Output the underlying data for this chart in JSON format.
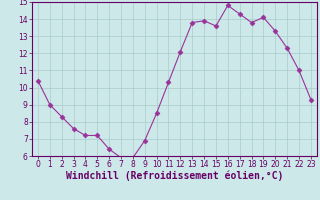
{
  "x": [
    0,
    1,
    2,
    3,
    4,
    5,
    6,
    7,
    8,
    9,
    10,
    11,
    12,
    13,
    14,
    15,
    16,
    17,
    18,
    19,
    20,
    21,
    22,
    23
  ],
  "y": [
    10.4,
    9.0,
    8.3,
    7.6,
    7.2,
    7.2,
    6.4,
    5.9,
    5.9,
    6.9,
    8.5,
    10.3,
    12.1,
    13.8,
    13.9,
    13.6,
    14.8,
    14.3,
    13.8,
    14.1,
    13.3,
    12.3,
    11.0,
    9.3
  ],
  "line_color": "#993399",
  "marker": "D",
  "marker_size": 2.5,
  "bg_color": "#cce8e8",
  "grid_color": "#aacccc",
  "xlabel": "Windchill (Refroidissement éolien,°C)",
  "ylim": [
    6,
    15
  ],
  "xlim_min": -0.5,
  "xlim_max": 23.5,
  "yticks": [
    6,
    7,
    8,
    9,
    10,
    11,
    12,
    13,
    14,
    15
  ],
  "xticks": [
    0,
    1,
    2,
    3,
    4,
    5,
    6,
    7,
    8,
    9,
    10,
    11,
    12,
    13,
    14,
    15,
    16,
    17,
    18,
    19,
    20,
    21,
    22,
    23
  ],
  "tick_fontsize": 5.5,
  "xlabel_fontsize": 7.0,
  "axis_color": "#660066",
  "spine_color": "#660066"
}
